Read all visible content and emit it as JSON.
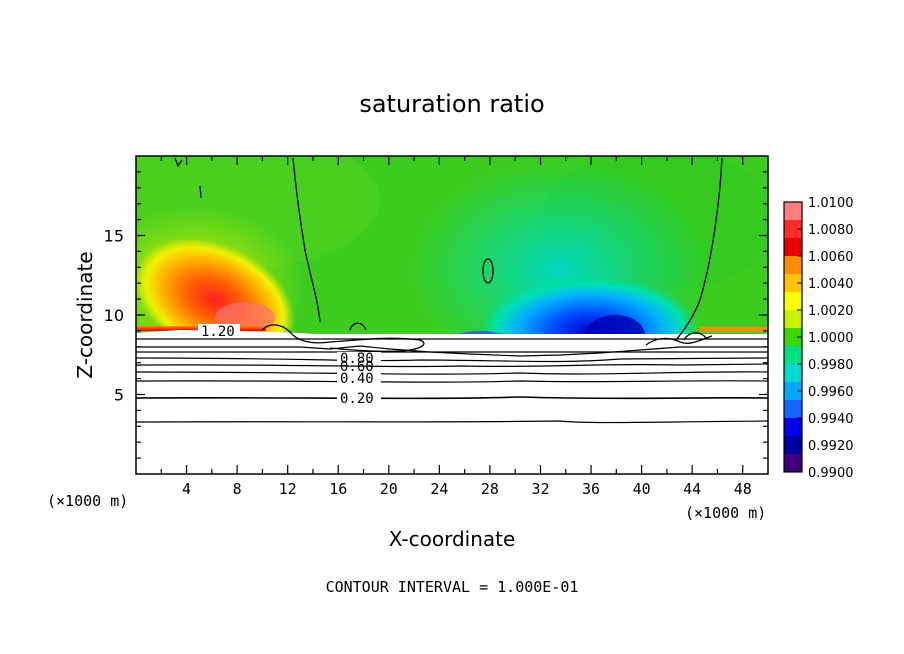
{
  "chart_data": {
    "type": "heatmap",
    "title": "saturation ratio",
    "xlabel": "X-coordinate",
    "ylabel": "Z-coordinate",
    "x_unit": "(×1000 m)",
    "z_unit": "(×1000 m)",
    "xlim": [
      0,
      50
    ],
    "zlim": [
      0,
      20
    ],
    "x_ticks": [
      "4",
      "8",
      "12",
      "16",
      "20",
      "24",
      "28",
      "32",
      "36",
      "40",
      "44",
      "48"
    ],
    "z_ticks": [
      "5",
      "10",
      "15"
    ],
    "colorbar": {
      "ticks": [
        "1.0100",
        "1.0080",
        "1.0060",
        "1.0040",
        "1.0020",
        "1.0000",
        "0.9980",
        "0.9960",
        "0.9940",
        "0.9920",
        "0.9900"
      ],
      "colors": [
        "#ff7f7f",
        "#ff2a2a",
        "#e80000",
        "#ff8c00",
        "#ffc400",
        "#ffff00",
        "#c8f000",
        "#3cd600",
        "#00e080",
        "#00d8d0",
        "#00a8ff",
        "#1464ff",
        "#0000e8",
        "#0000a0",
        "#400080"
      ]
    },
    "contour_labels": [
      "1.20",
      "0.80",
      "0.60",
      "0.40",
      "0.20"
    ],
    "footer": "CONTOUR INTERVAL = 1.000E-01"
  }
}
